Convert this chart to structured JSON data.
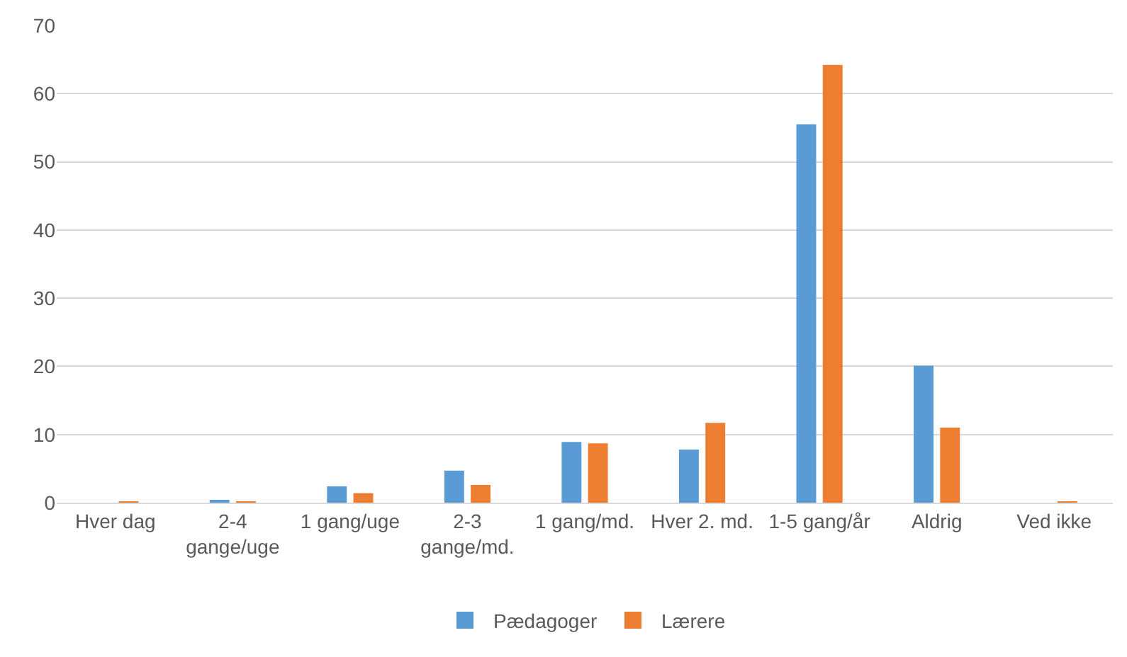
{
  "chart_data": {
    "type": "bar",
    "categories": [
      "Hver dag",
      "2-4 gange/uge",
      "1 gang/uge",
      "2-3 gange/md.",
      "1 gang/md.",
      "Hver 2. md.",
      "1-5 gang/år",
      "Aldrig",
      "Ved ikke"
    ],
    "series": [
      {
        "name": "Pædagoger",
        "color": "#5b9bd5",
        "values": [
          0,
          0.4,
          2.4,
          4.7,
          8.9,
          7.8,
          55.5,
          20.1,
          0
        ]
      },
      {
        "name": "Lærere",
        "color": "#ed7d31",
        "values": [
          0.1,
          0.1,
          1.4,
          2.6,
          8.7,
          11.7,
          64.2,
          11.0,
          0.1
        ]
      }
    ],
    "ylim": [
      0,
      70
    ],
    "yticks": [
      0,
      10,
      20,
      30,
      40,
      50,
      60,
      70
    ],
    "grid": "y",
    "legend": "bottom"
  }
}
